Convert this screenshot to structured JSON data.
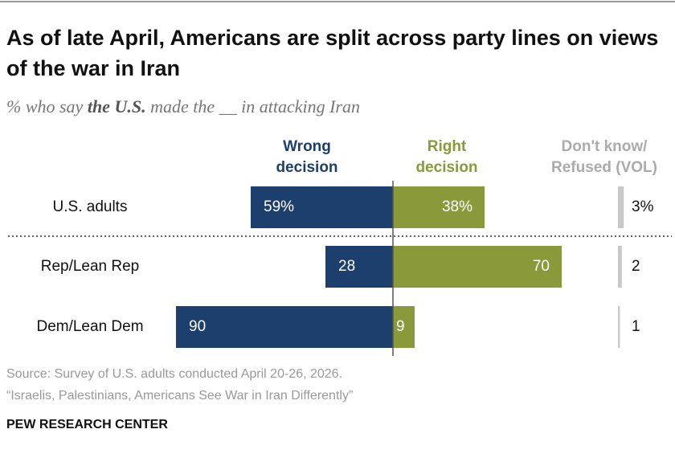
{
  "chart_data": {
    "type": "diverging-bar",
    "title": "As of late April, Americans are split across party lines on views of the war in Iran",
    "subtitle": [
      "% who say ",
      "the U.S.",
      " made the __ in attacking Iran"
    ],
    "categories": [
      "U.S. adults",
      "Rep/Lean Rep",
      "Dem/Lean Dem"
    ],
    "series": [
      {
        "name": "Wrong\ndecision",
        "color": "#1c3f6e",
        "values": [
          59,
          28,
          90
        ],
        "value_labels": [
          "59%",
          "28",
          "90"
        ]
      },
      {
        "name": "Right\ndecision",
        "color": "#8a9a3b",
        "values": [
          38,
          70,
          9
        ],
        "value_labels": [
          "38%",
          "70",
          "9"
        ]
      },
      {
        "name": "Don't know/\nRefused (VOL)",
        "color": "#ababab",
        "values": [
          3,
          2,
          1
        ],
        "value_labels": [
          "3%",
          "2",
          "1"
        ]
      }
    ],
    "source": "Source: Survey of U.S. adults conducted April 20-26, 2026.",
    "note": "“Israelis, Palestinians, Americans See War in Iran Differently”",
    "organization": "PEW RESEARCH CENTER"
  }
}
